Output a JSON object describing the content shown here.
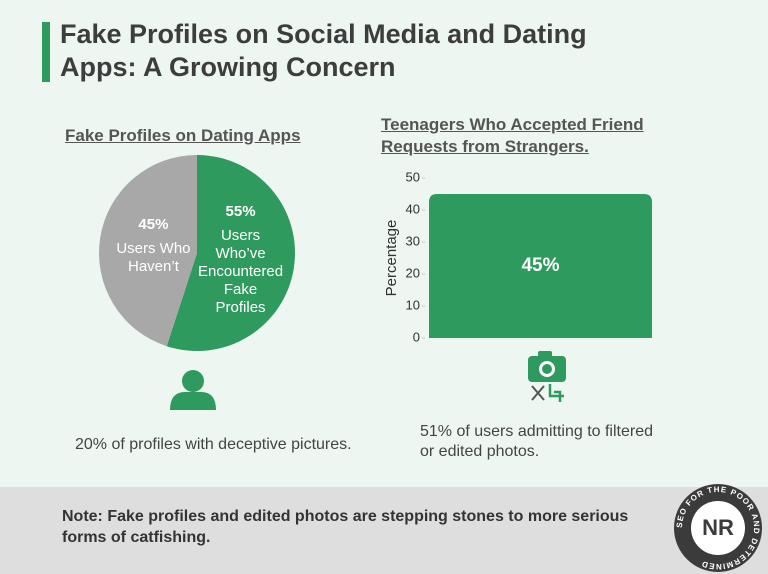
{
  "header": {
    "title": "Fake Profiles on Social Media and Dating Apps: A Growing Concern"
  },
  "chart_data": [
    {
      "type": "pie",
      "title": "Fake Profiles on Dating Apps",
      "categories": [
        "Users Who’ve Encountered Fake Profiles",
        "Users Who Haven’t"
      ],
      "values": [
        55,
        45
      ],
      "value_labels": [
        "55%",
        "45%"
      ],
      "colors": [
        "#2e9a5e",
        "#a8a8a8"
      ]
    },
    {
      "type": "bar",
      "title": "Teenagers Who Accepted Friend Requests from Strangers.",
      "ylabel": "Percentage",
      "categories": [
        null
      ],
      "values": [
        45
      ],
      "value_labels": [
        "45%"
      ],
      "color": "#2e9a5e",
      "ylim": [
        0,
        50
      ],
      "yticks": [
        0,
        10,
        20,
        30,
        40,
        50
      ]
    }
  ],
  "captions": [
    "20% of profiles with deceptive pictures.",
    "51% of users admitting to filtered or edited photos."
  ],
  "note": "Note: Fake profiles and edited photos are stepping stones to more serious forms of catfishing.",
  "logo": {
    "initials": "NR",
    "ring": "SEO FOR THE POOR AND DETERMINED"
  }
}
